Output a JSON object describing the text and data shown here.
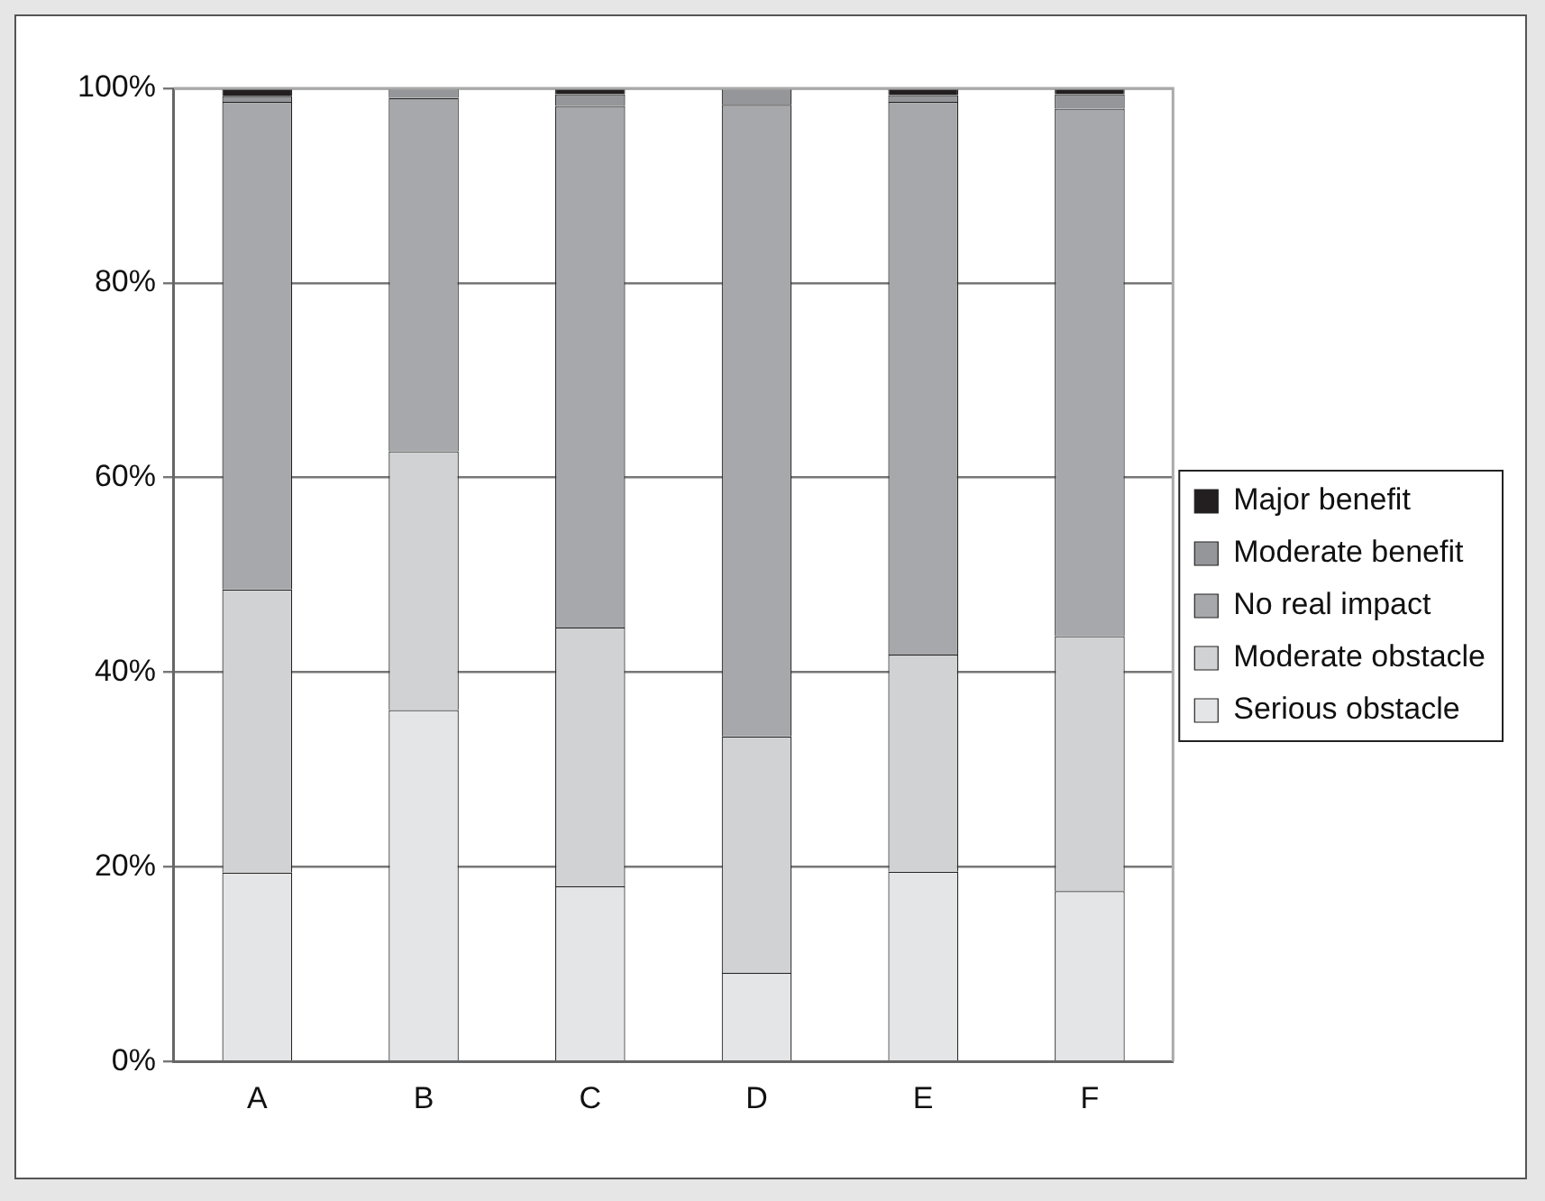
{
  "chart_data": {
    "type": "bar",
    "stacked": true,
    "categories": [
      "A",
      "B",
      "C",
      "D",
      "E",
      "F"
    ],
    "series": [
      {
        "name": "Serious obstacle",
        "color": "#e4e5e7",
        "values": [
          19.4,
          36.1,
          18,
          9.1,
          19.5,
          17.5
        ]
      },
      {
        "name": "Moderate obstacle",
        "color": "#d1d2d4",
        "values": [
          29.1,
          26.6,
          26.6,
          24.3,
          22.3,
          26.2
        ]
      },
      {
        "name": "No real impact",
        "color": "#a7a8ab",
        "values": [
          50.1,
          36.3,
          53.6,
          64.9,
          56.8,
          54.2
        ]
      },
      {
        "name": "Moderate benefit",
        "color": "#959699",
        "values": [
          0.6,
          1.0,
          1.2,
          1.7,
          0.7,
          1.5
        ]
      },
      {
        "name": "Major benefit",
        "color": "#231f20",
        "values": [
          0.8,
          0,
          0.6,
          0,
          0.7,
          0.6
        ]
      }
    ],
    "ylim": [
      0,
      100
    ],
    "yticks": [
      {
        "value": 0,
        "label": "0%"
      },
      {
        "value": 20,
        "label": "20%"
      },
      {
        "value": 40,
        "label": "40%"
      },
      {
        "value": 60,
        "label": "60%"
      },
      {
        "value": 80,
        "label": "80%"
      },
      {
        "value": 100,
        "label": "100%"
      }
    ],
    "grid": "y",
    "legend": "right"
  }
}
